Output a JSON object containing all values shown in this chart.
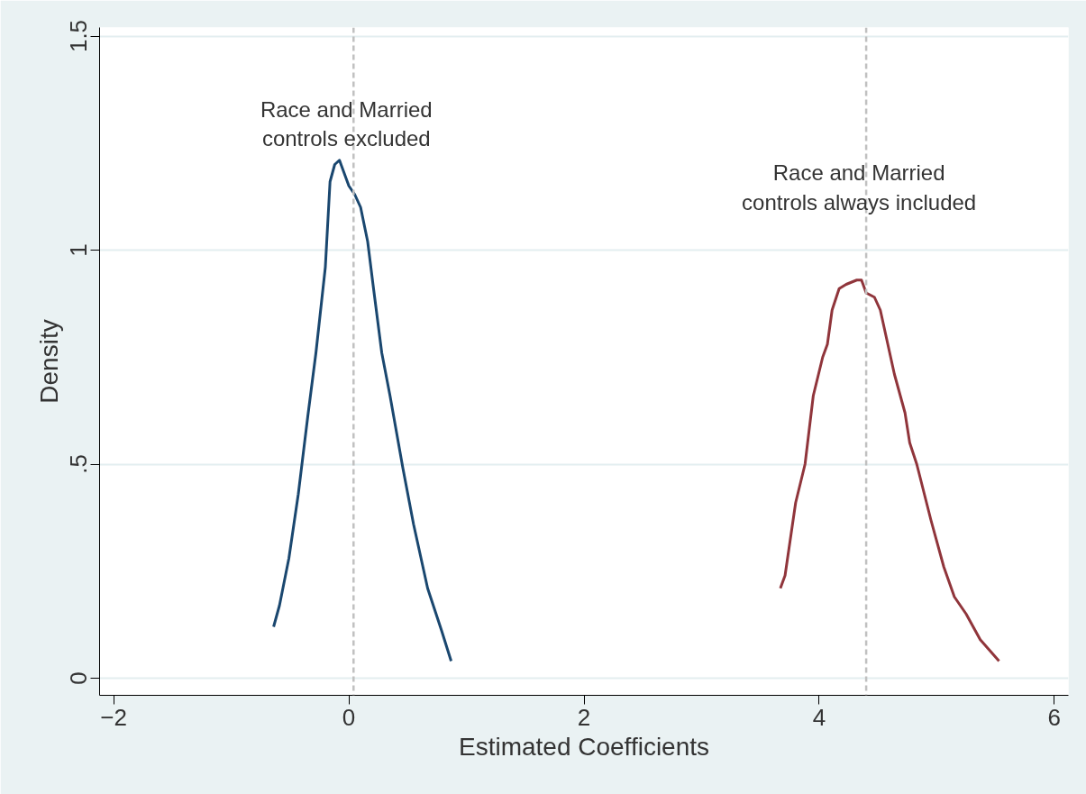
{
  "chart_data": {
    "type": "line",
    "xlabel": "Estimated Coefficients",
    "ylabel": "Density",
    "xlim": [
      -2.12,
      6.12
    ],
    "ylim": [
      -0.04,
      1.52
    ],
    "xticks": [
      {
        "value": -2,
        "label": "−2"
      },
      0,
      2,
      4,
      6
    ],
    "yticks": [
      0,
      {
        "value": 0.5,
        "label": ".5"
      },
      1,
      1.5
    ],
    "grid": "y",
    "line_style": "solid",
    "marker": "none",
    "series": [
      {
        "color": "#1a476f",
        "x": [
          -0.64,
          -0.59,
          -0.51,
          -0.43,
          -0.35,
          -0.28,
          -0.2,
          -0.16,
          -0.12,
          -0.08,
          -0.04,
          0.0,
          0.05,
          0.1,
          0.16,
          0.21,
          0.28,
          0.35,
          0.46,
          0.55,
          0.67,
          0.79,
          0.87
        ],
        "values": [
          0.12,
          0.17,
          0.28,
          0.43,
          0.61,
          0.76,
          0.96,
          1.16,
          1.2,
          1.21,
          1.18,
          1.15,
          1.13,
          1.1,
          1.02,
          0.91,
          0.76,
          0.66,
          0.49,
          0.36,
          0.21,
          0.11,
          0.04
        ]
      },
      {
        "color": "#90353b",
        "x": [
          3.67,
          3.71,
          3.8,
          3.88,
          3.95,
          4.03,
          4.07,
          4.11,
          4.17,
          4.23,
          4.32,
          4.36,
          4.4,
          4.47,
          4.52,
          4.64,
          4.73,
          4.77,
          4.83,
          4.95,
          5.06,
          5.15,
          5.25,
          5.37,
          5.53
        ],
        "values": [
          0.21,
          0.24,
          0.41,
          0.5,
          0.66,
          0.75,
          0.78,
          0.86,
          0.91,
          0.92,
          0.93,
          0.93,
          0.9,
          0.89,
          0.86,
          0.71,
          0.62,
          0.55,
          0.5,
          0.37,
          0.26,
          0.19,
          0.15,
          0.09,
          0.04
        ]
      }
    ],
    "ref_lines": [
      {
        "axis": "x",
        "value": 0.04,
        "color": "#c0c0c0",
        "line_style": "dashed",
        "label": "Race and Married\ncontrols excluded"
      },
      {
        "axis": "x",
        "value": 4.4,
        "color": "#c0c0c0",
        "line_style": "dashed",
        "label": "Race and Married\ncontrols always included"
      }
    ]
  }
}
